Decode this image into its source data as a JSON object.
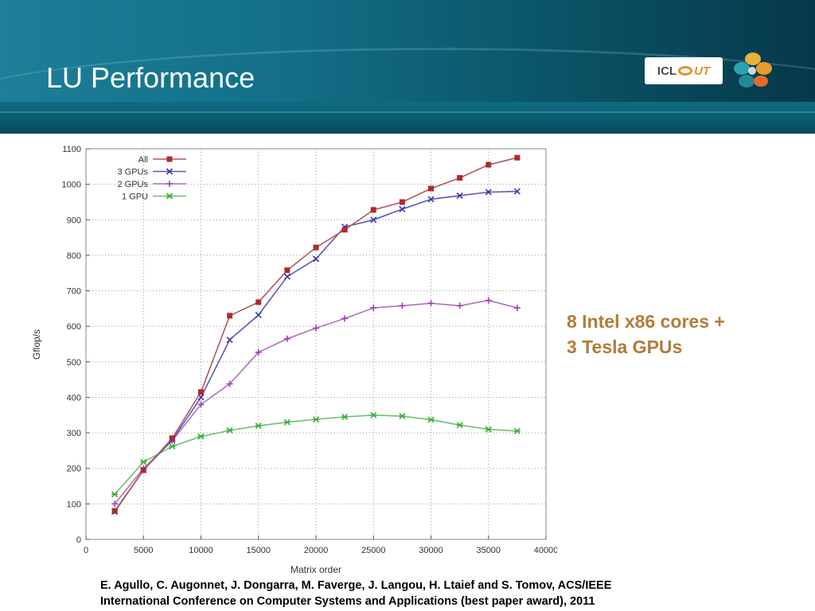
{
  "slide": {
    "title": "LU Performance",
    "note_line1": "8 Intel x86 cores +",
    "note_line2": "3 Tesla GPUs",
    "citation_line1": "E. Agullo, C. Augonnet, J. Dongarra, M. Faverge, J. Langou, H. Ltaief and S. Tomov, ACS/IEEE",
    "citation_line2": "International Conference on Computer Systems and Applications (best paper award), 2011",
    "logo_text": "ICL",
    "logo_text2": "UT"
  },
  "colors": {
    "header_start": "#1d7f98",
    "header_end": "#06384a",
    "note": "#b47b3a"
  },
  "chart_data": {
    "type": "line",
    "xlabel": "Matrix order",
    "ylabel": "Gflop/s",
    "xlim": [
      0,
      40000
    ],
    "ylim": [
      0,
      1100
    ],
    "xticks": [
      0,
      5000,
      10000,
      15000,
      20000,
      25000,
      30000,
      35000,
      40000
    ],
    "yticks": [
      0,
      100,
      200,
      300,
      400,
      500,
      600,
      700,
      800,
      900,
      1000,
      1100
    ],
    "grid": true,
    "legend_position": "top-left",
    "x": [
      2500,
      5000,
      7500,
      10000,
      12500,
      15000,
      17500,
      20000,
      22500,
      25000,
      27500,
      30000,
      32500,
      35000,
      37500
    ],
    "series": [
      {
        "name": "All",
        "color": "#b02a2a",
        "line_color": "#b05a5a",
        "marker": "square",
        "values": [
          80,
          195,
          285,
          415,
          630,
          668,
          758,
          822,
          872,
          928,
          950,
          988,
          1018,
          1055,
          1075
        ]
      },
      {
        "name": "3 GPUs",
        "color": "#3a3aa8",
        "line_color": "#5a5ab8",
        "marker": "x",
        "values": [
          78,
          195,
          280,
          400,
          562,
          632,
          740,
          790,
          880,
          900,
          930,
          958,
          968,
          978,
          980
        ]
      },
      {
        "name": "2 GPUs",
        "color": "#a040b0",
        "line_color": "#b070c0",
        "marker": "plus",
        "values": [
          100,
          200,
          278,
          380,
          438,
          527,
          565,
          595,
          622,
          652,
          658,
          665,
          658,
          673,
          652
        ]
      },
      {
        "name": "1 GPU",
        "color": "#40b040",
        "line_color": "#70c070",
        "marker": "star",
        "values": [
          127,
          218,
          262,
          290,
          307,
          320,
          330,
          338,
          345,
          350,
          347,
          337,
          322,
          310,
          305
        ]
      }
    ]
  }
}
